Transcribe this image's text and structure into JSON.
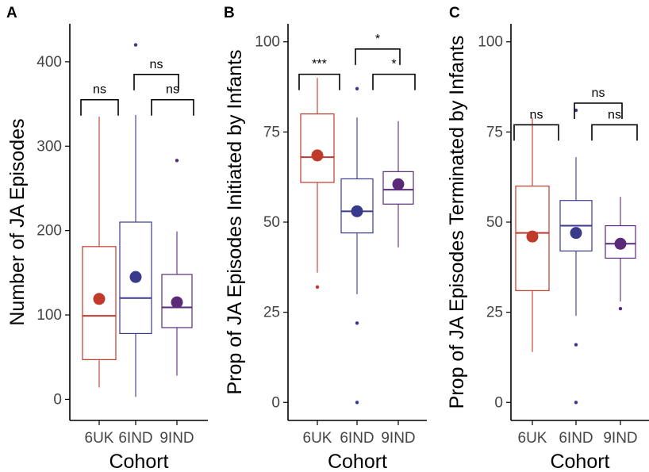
{
  "colors": {
    "6UK": "#c0392b",
    "6IND": "#3a3a8c",
    "9IND": "#5a2a78"
  },
  "chart_data": [
    {
      "type": "box",
      "panel_label": "A",
      "ylabel": "Number of JA Episodes",
      "xlabel": "Cohort",
      "ylim": [
        -25,
        445
      ],
      "yticks": [
        0,
        100,
        200,
        300,
        400
      ],
      "categories": [
        "6UK",
        "6IND",
        "9IND"
      ],
      "boxes": [
        {
          "group": "6UK",
          "lower_whisker": 14,
          "q1": 47,
          "median": 99,
          "q3": 181,
          "upper_whisker": 335,
          "mean": 119,
          "outliers": []
        },
        {
          "group": "6IND",
          "lower_whisker": 3,
          "q1": 78,
          "median": 120,
          "q3": 210,
          "upper_whisker": 337,
          "mean": 145,
          "outliers": [
            420
          ]
        },
        {
          "group": "9IND",
          "lower_whisker": 28,
          "q1": 85,
          "median": 109,
          "q3": 148,
          "upper_whisker": 199,
          "mean": 115,
          "outliers": [
            283
          ]
        }
      ],
      "comparisons": [
        {
          "from": "6UK",
          "to": "6IND",
          "label": "ns",
          "y": 355
        },
        {
          "from": "6IND",
          "to": "9IND",
          "label": "ns",
          "y": 385
        },
        {
          "from": "6IND",
          "to": "9IND",
          "label": "ns",
          "y": 355,
          "offset": true
        }
      ]
    },
    {
      "type": "box",
      "panel_label": "B",
      "ylabel": "Prop of JA Episodes Initiated by Infants",
      "xlabel": "Cohort",
      "ylim": [
        -5,
        105
      ],
      "yticks": [
        0,
        25,
        50,
        75,
        100
      ],
      "categories": [
        "6UK",
        "6IND",
        "9IND"
      ],
      "boxes": [
        {
          "group": "6UK",
          "lower_whisker": 36,
          "q1": 61,
          "median": 68,
          "q3": 80,
          "upper_whisker": 90,
          "mean": 68.5,
          "outliers": [
            32
          ]
        },
        {
          "group": "6IND",
          "lower_whisker": 30,
          "q1": 47,
          "median": 53,
          "q3": 62,
          "upper_whisker": 79,
          "mean": 53,
          "outliers": [
            87,
            22,
            0
          ]
        },
        {
          "group": "9IND",
          "lower_whisker": 43,
          "q1": 55,
          "median": 59,
          "q3": 64,
          "upper_whisker": 78,
          "mean": 60.5,
          "outliers": []
        }
      ],
      "comparisons": [
        {
          "from": "6UK",
          "to": "6IND",
          "label": "***",
          "y": 91
        },
        {
          "from": "6IND",
          "to": "9IND",
          "label": "*",
          "y": 98
        },
        {
          "from": "6IND",
          "to": "9IND",
          "label": "*",
          "y": 91,
          "offset": true
        }
      ]
    },
    {
      "type": "box",
      "panel_label": "C",
      "ylabel": "Prop of JA Episodes Terminated by Infants",
      "xlabel": "Cohort",
      "ylim": [
        -5,
        105
      ],
      "yticks": [
        0,
        25,
        50,
        75,
        100
      ],
      "categories": [
        "6UK",
        "6IND",
        "9IND"
      ],
      "boxes": [
        {
          "group": "6UK",
          "lower_whisker": 14,
          "q1": 31,
          "median": 47,
          "q3": 60,
          "upper_whisker": 79,
          "mean": 46,
          "outliers": []
        },
        {
          "group": "6IND",
          "lower_whisker": 24,
          "q1": 42,
          "median": 49,
          "q3": 56,
          "upper_whisker": 68,
          "mean": 47,
          "outliers": [
            81,
            16,
            0
          ]
        },
        {
          "group": "9IND",
          "lower_whisker": 28,
          "q1": 40,
          "median": 44,
          "q3": 49,
          "upper_whisker": 57,
          "mean": 44,
          "outliers": [
            26
          ]
        }
      ],
      "comparisons": [
        {
          "from": "6UK",
          "to": "6IND",
          "label": "ns",
          "y": 77
        },
        {
          "from": "6IND",
          "to": "9IND",
          "label": "ns",
          "y": 83
        },
        {
          "from": "6IND",
          "to": "9IND",
          "label": "ns",
          "y": 77,
          "offset": true
        }
      ]
    }
  ]
}
